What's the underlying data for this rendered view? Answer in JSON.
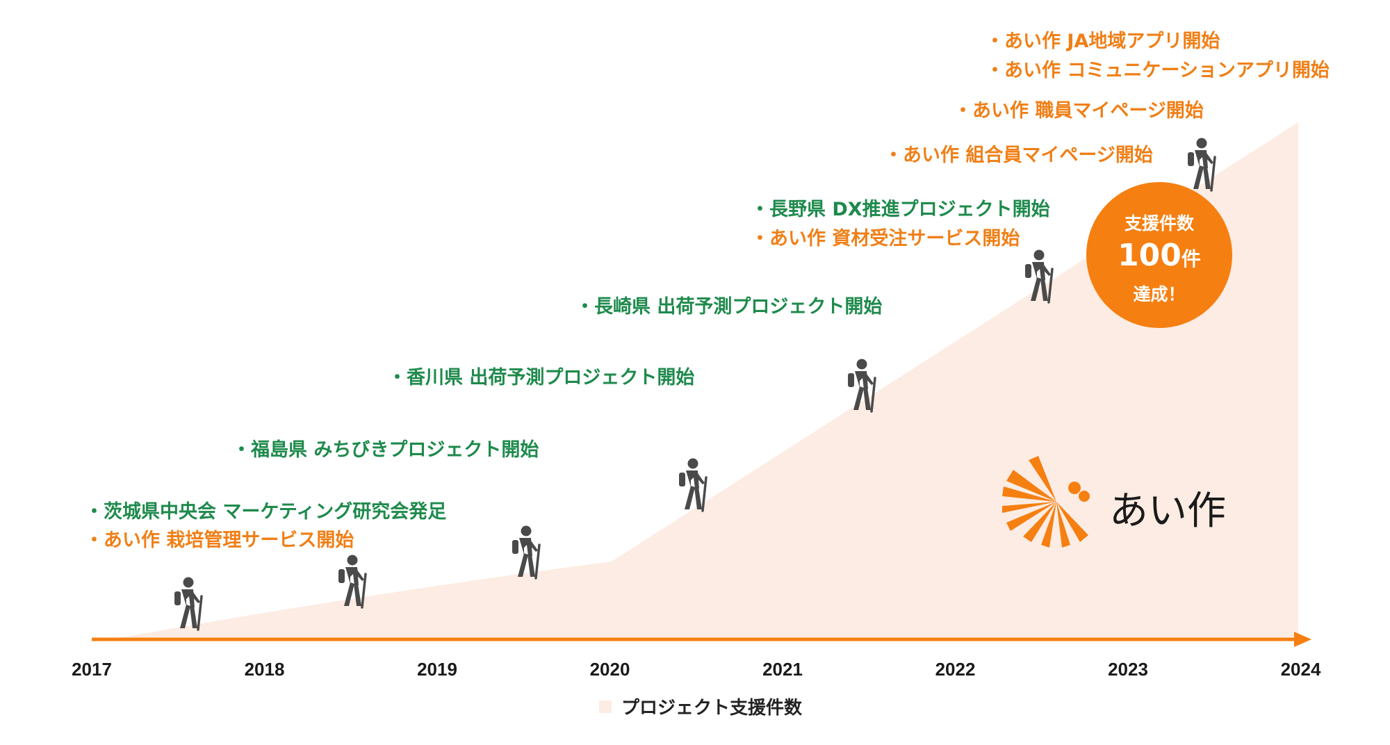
{
  "chart_data": {
    "type": "area",
    "x": [
      "2017",
      "2018",
      "2019",
      "2020",
      "2021",
      "2022",
      "2023",
      "2024"
    ],
    "series": [
      {
        "name": "プロジェクト支援件数",
        "color": "#fdece3"
      }
    ],
    "legend_position": "bottom",
    "grid": false,
    "axis_color": "#f57f11"
  },
  "annotations": [
    {
      "id": "ann-1",
      "text": "・茨城県中央会 マーケティング研究会発足",
      "color": "green"
    },
    {
      "id": "ann-2",
      "text": "・あい作 栽培管理サービス開始",
      "color": "orange"
    },
    {
      "id": "ann-3",
      "text": "・福島県 みちびきプロジェクト開始",
      "color": "green"
    },
    {
      "id": "ann-4",
      "text": "・香川県 出荷予測プロジェクト開始",
      "color": "green"
    },
    {
      "id": "ann-5",
      "text": "・長崎県 出荷予測プロジェクト開始",
      "color": "green"
    },
    {
      "id": "ann-6",
      "text": "・長野県 DX推進プロジェクト開始",
      "color": "green"
    },
    {
      "id": "ann-7",
      "text": "・あい作 資材受注サービス開始",
      "color": "orange"
    },
    {
      "id": "ann-8",
      "text": "・あい作 組合員マイページ開始",
      "color": "orange"
    },
    {
      "id": "ann-9",
      "text": "・あい作 職員マイページ開始",
      "color": "orange"
    },
    {
      "id": "ann-10",
      "text": "・あい作 JA地域アプリ開始",
      "color": "orange"
    },
    {
      "id": "ann-11",
      "text": "・あい作 コミュニケーションアプリ開始",
      "color": "orange"
    }
  ],
  "badge": {
    "line1": "支援件数",
    "number": "100",
    "unit": "件",
    "line3": "達成！",
    "color": "#f57f11"
  },
  "logo": {
    "text": "あい作",
    "icon": "sunburst-logo-icon"
  },
  "legend": {
    "label": "プロジェクト支援件数"
  },
  "icons": {
    "hiker": "hiker-icon"
  }
}
